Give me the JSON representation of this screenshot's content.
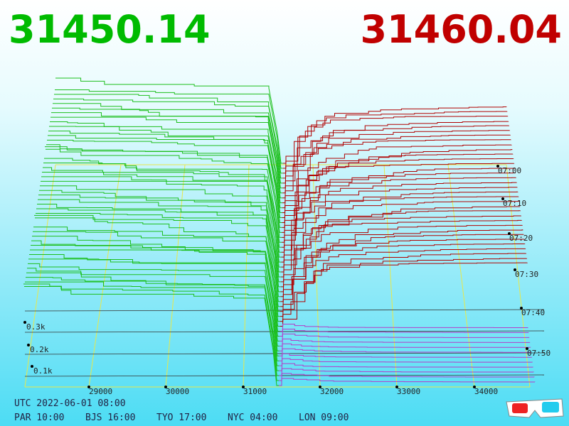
{
  "header": {
    "bid": "31450.14",
    "ask": "31460.04"
  },
  "price_axis": [
    "29000",
    "30000",
    "31000",
    "32000",
    "33000",
    "34000"
  ],
  "size_axis": [
    "0.3k",
    "0.2k",
    "0.1k"
  ],
  "time_axis": [
    "07:00",
    "07:10",
    "07:20",
    "07:30",
    "07:40",
    "07:50"
  ],
  "clock": {
    "utc": "UTC 2022-06-01 08:00",
    "cities": [
      "PAR 10:00",
      "BJS 16:00",
      "TYO 17:00",
      "NYC 04:00",
      "LON 09:00"
    ]
  }
}
